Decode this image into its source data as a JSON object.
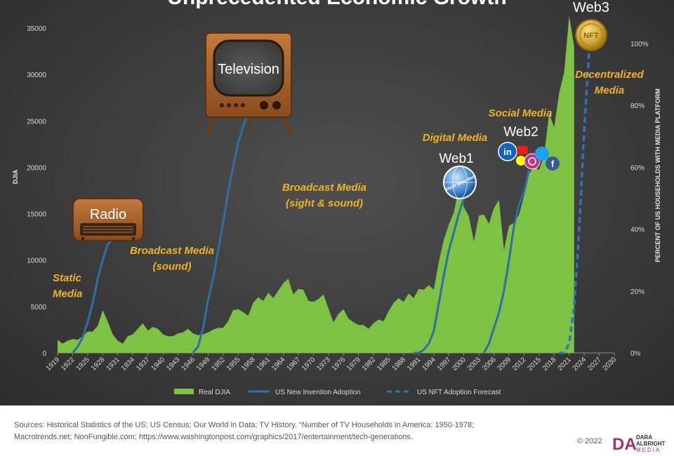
{
  "colors": {
    "real_djia": "#7dc242",
    "invention": "#2e6fa8",
    "nft": "#2e75b6",
    "era_label": "#f0b323",
    "tick": "#d9d9d9",
    "icon_text": "#ffffff"
  },
  "chart_data": {
    "type": "area",
    "title": "Unprecedented Economic Growth",
    "ylabel": "DJIA",
    "y2label": "PERCENT OF US HOUSEHOLDS WITH MEDIA PLATFORM",
    "xlim": [
      1919,
      2030
    ],
    "ylim": [
      0,
      35000
    ],
    "y2lim": [
      0,
      1.05
    ],
    "x_ticks": [
      "1919",
      "1922",
      "1925",
      "1928",
      "1931",
      "1934",
      "1937",
      "1940",
      "1943",
      "1946",
      "1949",
      "1952",
      "1955",
      "1958",
      "1961",
      "1964",
      "1967",
      "1970",
      "1973",
      "1976",
      "1979",
      "1982",
      "1985",
      "1988",
      "1991",
      "1994",
      "1997",
      "2000",
      "2003",
      "2006",
      "2009",
      "2012",
      "2015",
      "2018",
      "2021",
      "2024",
      "2027",
      "2030"
    ],
    "y_ticks": [
      "0",
      "5000",
      "10000",
      "15000",
      "20000",
      "25000",
      "30000",
      "35000"
    ],
    "y2_ticks": [
      "0%",
      "20%",
      "40%",
      "60%",
      "80%",
      "100%"
    ],
    "legend": [
      "Real DJIA",
      "US New Invention Adoption",
      "US NFT Adoption Forecast"
    ],
    "legend_position": "bottom",
    "series": [
      {
        "name": "Real DJIA",
        "type": "area",
        "x": [
          1919,
          1920,
          1921,
          1922,
          1923,
          1924,
          1925,
          1926,
          1927,
          1928,
          1929,
          1930,
          1931,
          1932,
          1933,
          1934,
          1935,
          1936,
          1937,
          1938,
          1939,
          1940,
          1941,
          1942,
          1943,
          1944,
          1945,
          1946,
          1947,
          1948,
          1949,
          1950,
          1951,
          1952,
          1953,
          1954,
          1955,
          1956,
          1957,
          1958,
          1959,
          1960,
          1961,
          1962,
          1963,
          1964,
          1965,
          1966,
          1967,
          1968,
          1969,
          1970,
          1971,
          1972,
          1973,
          1974,
          1975,
          1976,
          1977,
          1978,
          1979,
          1980,
          1981,
          1982,
          1983,
          1984,
          1985,
          1986,
          1987,
          1988,
          1989,
          1990,
          1991,
          1992,
          1993,
          1994,
          1995,
          1996,
          1997,
          1998,
          1999,
          2000,
          2001,
          2002,
          2003,
          2004,
          2005,
          2006,
          2007,
          2008,
          2009,
          2010,
          2011,
          2012,
          2013,
          2014,
          2015,
          2016,
          2017,
          2018,
          2019,
          2020,
          2021,
          2022
        ],
        "values": [
          1400,
          1000,
          1300,
          1500,
          1400,
          1800,
          2300,
          2300,
          2900,
          4600,
          3400,
          2000,
          1300,
          1000,
          1800,
          2000,
          2600,
          3200,
          2400,
          2800,
          2600,
          2000,
          1800,
          1800,
          2100,
          2200,
          2600,
          2100,
          1900,
          2000,
          2200,
          2500,
          2700,
          2700,
          3400,
          4600,
          4700,
          4400,
          4000,
          5400,
          6000,
          5600,
          6500,
          5900,
          6700,
          7500,
          8000,
          6300,
          6900,
          6800,
          5600,
          5500,
          5800,
          6300,
          4800,
          3300,
          4200,
          4700,
          3700,
          3300,
          3000,
          3000,
          2600,
          3200,
          3600,
          3400,
          4500,
          5400,
          5900,
          5500,
          6400,
          5900,
          6900,
          6800,
          7300,
          6800,
          9800,
          12200,
          13800,
          15100,
          17800,
          15700,
          14700,
          12000,
          14800,
          14900,
          13900,
          15600,
          16500,
          11100,
          13700,
          14000,
          14900,
          16900,
          19300,
          20100,
          19700,
          21300,
          25800,
          24300,
          28000,
          30300,
          36300,
          33000
        ]
      },
      {
        "name": "US New Invention Adoption",
        "segments": [
          {
            "label": "Radio",
            "x": [
              1922,
              1923,
              1924,
              1925,
              1926,
              1927,
              1928,
              1929,
              1930
            ],
            "values": [
              0.0,
              0.02,
              0.05,
              0.1,
              0.16,
              0.24,
              0.3,
              0.35,
              0.37
            ]
          },
          {
            "label": "Television",
            "x": [
              1946,
              1947,
              1948,
              1949,
              1950,
              1951,
              1952,
              1953,
              1954,
              1955,
              1956,
              1957,
              1958
            ],
            "values": [
              0.0,
              0.02,
              0.08,
              0.17,
              0.24,
              0.33,
              0.42,
              0.52,
              0.6,
              0.68,
              0.73,
              0.78,
              0.81
            ]
          },
          {
            "label": "Web1",
            "x": [
              1990,
              1991,
              1992,
              1993,
              1994,
              1995,
              1996,
              1997,
              1998,
              1999,
              2000
            ],
            "values": [
              0.0,
              0.0,
              0.01,
              0.03,
              0.07,
              0.16,
              0.25,
              0.33,
              0.39,
              0.45,
              0.5
            ]
          },
          {
            "label": "Web2",
            "x": [
              2004,
              2005,
              2006,
              2007,
              2008,
              2009,
              2010,
              2011,
              2012,
              2013
            ],
            "values": [
              0.0,
              0.03,
              0.08,
              0.13,
              0.2,
              0.3,
              0.41,
              0.48,
              0.52,
              0.59
            ]
          }
        ]
      },
      {
        "name": "US NFT Adoption Forecast",
        "dashed": true,
        "x": [
          2019,
          2020,
          2021,
          2022,
          2023,
          2024,
          2025
        ],
        "values": [
          0.0,
          0.0,
          0.03,
          0.15,
          0.4,
          0.72,
          0.98
        ]
      }
    ],
    "annotations": [
      {
        "name": "static-media",
        "text": "Static\nMedia",
        "style": "era"
      },
      {
        "name": "broadcast-sound",
        "text": "Broadcast Media\n(sound)",
        "style": "era"
      },
      {
        "name": "broadcast-sight-sound",
        "text": "Broadcast Media\n(sight & sound)",
        "style": "era"
      },
      {
        "name": "digital-media",
        "text": "Digital Media",
        "style": "era"
      },
      {
        "name": "social-media",
        "text": "Social Media",
        "style": "era"
      },
      {
        "name": "decentralized-media",
        "text": "Decentralized\nMedia",
        "style": "era"
      },
      {
        "name": "radio",
        "text": "Radio",
        "style": "icon"
      },
      {
        "name": "television",
        "text": "Television",
        "style": "icon"
      },
      {
        "name": "web1",
        "text": "Web1",
        "style": "icon"
      },
      {
        "name": "web2",
        "text": "Web2",
        "style": "icon"
      },
      {
        "name": "web3",
        "text": "Web3",
        "style": "icon"
      }
    ],
    "icons": {
      "radio": "radio-icon",
      "television": "television-icon",
      "web1": "world-wide-web-globe-icon",
      "web2": "social-media-logos-icon",
      "web3": "nft-coin-icon"
    },
    "icon_texts": {
      "globe": "World Wide Web",
      "coin": "NFT"
    }
  },
  "footer": {
    "sources_line1": "Sources: Historical Statistics of the US; US Census; Our World in Data; TV History. “Number of TV Households in America: 1950-1978;",
    "sources_line2": "Macrotrends.net; NonFungible.com; https://www.washingtonpost.com/graphics/2017/entertainment/tech-generations.",
    "copyright": "© 2022",
    "brand_mark": "DA",
    "brand_line1": "DARA",
    "brand_line2": "ALBRIGHT",
    "brand_line3": "MEDIA"
  }
}
